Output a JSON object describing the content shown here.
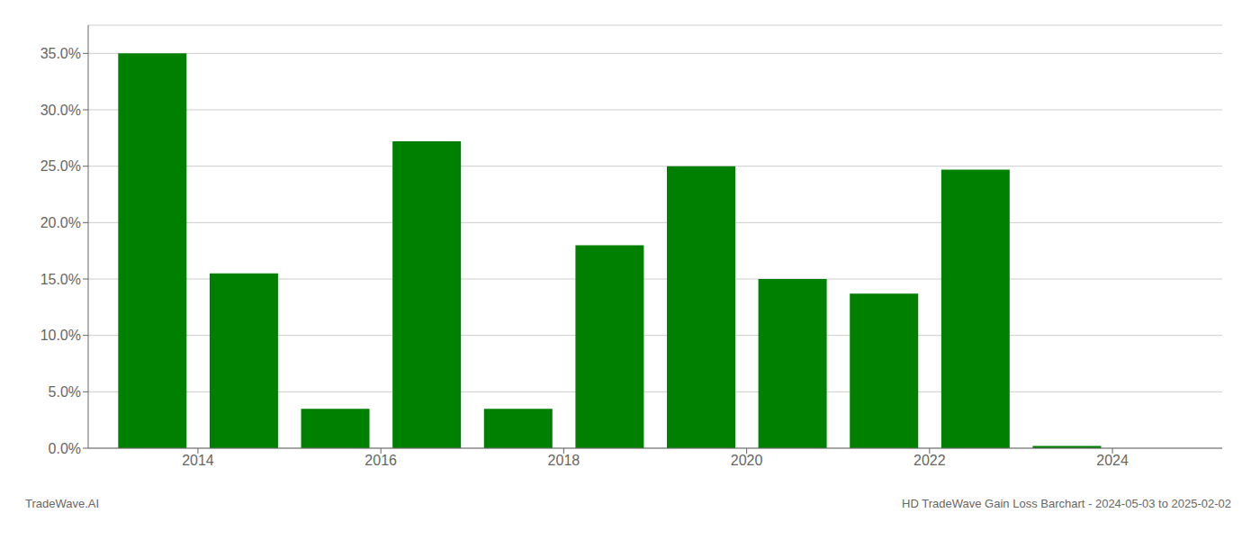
{
  "chart_data": {
    "type": "bar",
    "x": [
      2013.5,
      2014.5,
      2015.5,
      2016.5,
      2017.5,
      2018.5,
      2019.5,
      2020.5,
      2021.5,
      2022.5,
      2023.5
    ],
    "values": [
      0.35,
      0.155,
      0.035,
      0.272,
      0.035,
      0.18,
      0.25,
      0.15,
      0.137,
      0.247,
      0.002
    ],
    "color": "#008000",
    "xlim": [
      2012.8,
      2025.2
    ],
    "ylim": [
      0,
      0.375
    ],
    "xticks": [
      2014,
      2016,
      2018,
      2020,
      2022,
      2024
    ],
    "yticks": [
      {
        "value": 0.0,
        "label": "0.0%"
      },
      {
        "value": 0.05,
        "label": "5.0%"
      },
      {
        "value": 0.1,
        "label": "10.0%"
      },
      {
        "value": 0.15,
        "label": "15.0%"
      },
      {
        "value": 0.2,
        "label": "20.0%"
      },
      {
        "value": 0.25,
        "label": "25.0%"
      },
      {
        "value": 0.3,
        "label": "30.0%"
      },
      {
        "value": 0.35,
        "label": "35.0%"
      }
    ],
    "grid": true,
    "annotations": [
      "TradeWave.AI",
      "HD TradeWave Gain Loss Barchart - 2024-05-03 to 2025-02-02"
    ]
  }
}
